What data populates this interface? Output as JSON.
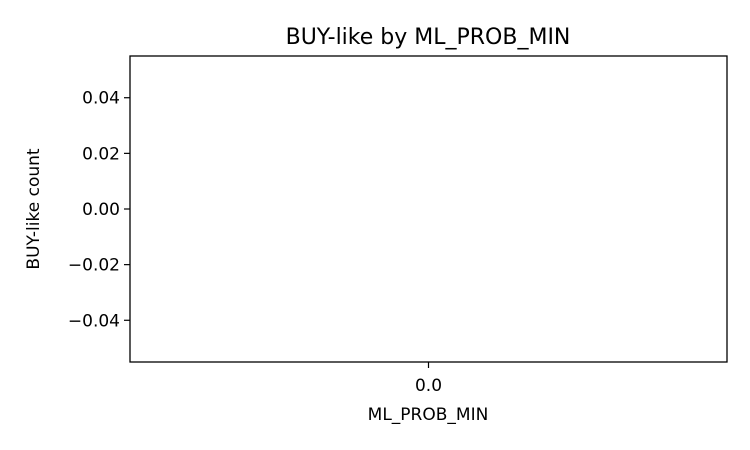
{
  "chart_data": {
    "type": "bar",
    "title": "BUY-like by ML_PROB_MIN",
    "xlabel": "ML_PROB_MIN",
    "ylabel": "BUY-like count",
    "categories": [
      "0.0"
    ],
    "values": [
      0
    ],
    "ylim": [
      -0.055,
      0.055
    ],
    "yticks": [
      0.04,
      0.02,
      0.0,
      -0.02,
      -0.04
    ],
    "ytick_labels": [
      "0.04",
      "0.02",
      "0.00",
      "−0.02",
      "−0.04"
    ],
    "grid": false,
    "legend": "none"
  },
  "colors": {
    "axis": "#000000",
    "background": "#ffffff"
  }
}
